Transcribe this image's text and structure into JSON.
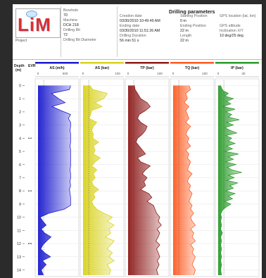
{
  "header": {
    "logo_text": "LiM",
    "project_label": "Project",
    "borehole_label": "Borehole",
    "borehole_value": "70",
    "machine_label": "Machine",
    "machine_value": "DCH 218",
    "drilling_bit_label": "Drilling Bit",
    "drilling_bit_value": "72",
    "drilling_bit_diameter_label": "Drilling Bit Diameter",
    "title": "Drilling parameters",
    "creation_date_label": "Creation date",
    "creation_date_value": "03/30/2010 10:49:49 AM",
    "ending_date_label": "Ending date",
    "ending_date_value": "03/30/2010 11:51:26 AM",
    "drilling_duration_label": "Drilling Duration",
    "drilling_duration_value": "56 min 51 s",
    "starting_position_label": "Starting Position",
    "starting_position_value": "0 m",
    "ending_position_label": "Ending Position",
    "ending_position_value": "22 m",
    "length_label": "Length",
    "length_value": "22 m",
    "gps_location_label": "GPS location (lat, lon)",
    "gps_altitude_label": "GPS altitude",
    "inclination_label": "Inclination X/Y",
    "inclination_value": "10 deg/25 deg"
  },
  "chart_data": {
    "type": "line",
    "depth_label": "Depth\n(m)",
    "depth_title": "Depth",
    "depth_unit": "(m)",
    "evr_label": "EVR",
    "depth_ticks": [
      0,
      1,
      2,
      3,
      4,
      5,
      6,
      7,
      8,
      9,
      10,
      11,
      12,
      13,
      14
    ],
    "depth_range": [
      -0.4,
      14.4
    ],
    "evr_markers": [
      4,
      8,
      12
    ],
    "tracks": [
      {
        "name": "AS (m/h)",
        "color": "#1a1ad0",
        "ticks": [
          "0",
          "500"
        ],
        "range": [
          0,
          700
        ],
        "depth": [
          0,
          0.3,
          0.6,
          1,
          1.3,
          1.6,
          1.9,
          2.2,
          2.5,
          2.8,
          3.1,
          3.4,
          3.7,
          4,
          4.3,
          4.6,
          4.9,
          5.2,
          5.5,
          5.8,
          6.1,
          6.4,
          6.7,
          7,
          7.3,
          7.6,
          7.9,
          8.2,
          8.5,
          8.8,
          9.1,
          9.4,
          9.7,
          10,
          10.3,
          10.6,
          10.9,
          11.2,
          11.5,
          11.8,
          12.1,
          12.4,
          12.7,
          13,
          13.3,
          13.6,
          14,
          14.4
        ],
        "values": [
          600,
          580,
          250,
          380,
          500,
          260,
          420,
          600,
          560,
          600,
          600,
          590,
          600,
          600,
          600,
          590,
          600,
          600,
          600,
          600,
          600,
          590,
          600,
          600,
          590,
          600,
          580,
          590,
          600,
          600,
          600,
          480,
          200,
          40,
          90,
          150,
          60,
          120,
          240,
          160,
          90,
          50,
          120,
          230,
          80,
          150,
          60,
          100
        ]
      },
      {
        "name": "AS (bar)",
        "color": "#d9d21e",
        "ticks": [
          "0",
          "100"
        ],
        "range": [
          0,
          110
        ],
        "depth": [
          0,
          0.3,
          0.6,
          1,
          1.3,
          1.6,
          1.9,
          2.2,
          2.5,
          2.8,
          3.1,
          3.4,
          3.7,
          4,
          4.3,
          4.6,
          4.9,
          5.2,
          5.5,
          5.8,
          6.1,
          6.4,
          6.7,
          7,
          7.3,
          7.6,
          7.9,
          8.2,
          8.5,
          8.8,
          9.1,
          9.4,
          9.7,
          10,
          10.3,
          10.6,
          10.9,
          11.2,
          11.5,
          11.8,
          12.1,
          12.4,
          12.7,
          13,
          13.3,
          13.6,
          14,
          14.4
        ],
        "values": [
          20,
          28,
          70,
          60,
          35,
          55,
          25,
          22,
          18,
          40,
          30,
          25,
          30,
          28,
          45,
          30,
          35,
          30,
          50,
          35,
          25,
          40,
          30,
          35,
          25,
          30,
          45,
          30,
          35,
          25,
          30,
          40,
          60,
          85,
          70,
          90,
          75,
          80,
          65,
          90,
          80,
          70,
          85,
          75,
          90,
          70,
          80,
          75
        ]
      },
      {
        "name": "TP (bar)",
        "color": "#8e1a1a",
        "ticks": [
          "0",
          "100"
        ],
        "range": [
          0,
          120
        ],
        "depth": [
          0,
          0.3,
          0.6,
          1,
          1.3,
          1.6,
          1.9,
          2.2,
          2.5,
          2.8,
          3.1,
          3.4,
          3.7,
          4,
          4.3,
          4.6,
          4.9,
          5.2,
          5.5,
          5.8,
          6.1,
          6.4,
          6.7,
          7,
          7.3,
          7.6,
          7.9,
          8.2,
          8.5,
          8.8,
          9.1,
          9.4,
          9.7,
          10,
          10.3,
          10.6,
          10.9,
          11.2,
          11.5,
          11.8,
          12.1,
          12.4,
          12.7,
          13,
          13.3,
          13.6,
          14,
          14.4
        ],
        "values": [
          20,
          22,
          30,
          40,
          60,
          70,
          55,
          35,
          30,
          40,
          60,
          55,
          45,
          30,
          25,
          35,
          45,
          55,
          30,
          40,
          70,
          55,
          45,
          60,
          50,
          55,
          40,
          65,
          75,
          60,
          80,
          85,
          90,
          100,
          95,
          105,
          92,
          100,
          95,
          88,
          100,
          90,
          95,
          100,
          92,
          98,
          90,
          95
        ]
      },
      {
        "name": "TQ (bar)",
        "color": "#ff5a1f",
        "ticks": [
          "0",
          "100"
        ],
        "range": [
          0,
          120
        ],
        "depth": [
          0,
          0.3,
          0.6,
          1,
          1.3,
          1.6,
          1.9,
          2.2,
          2.5,
          2.8,
          3.1,
          3.4,
          3.7,
          4,
          4.3,
          4.6,
          4.9,
          5.2,
          5.5,
          5.8,
          6.1,
          6.4,
          6.7,
          7,
          7.3,
          7.6,
          7.9,
          8.2,
          8.5,
          8.8,
          9.1,
          9.4,
          9.7,
          10,
          10.3,
          10.6,
          10.9,
          11.2,
          11.5,
          11.8,
          12.1,
          12.4,
          12.7,
          13,
          13.3,
          13.6,
          14,
          14.4
        ],
        "values": [
          50,
          55,
          40,
          45,
          35,
          50,
          40,
          45,
          50,
          40,
          55,
          45,
          40,
          50,
          45,
          55,
          40,
          50,
          45,
          55,
          50,
          45,
          60,
          50,
          45,
          55,
          50,
          60,
          55,
          50,
          60,
          55,
          65,
          55,
          60,
          70,
          55,
          65,
          60,
          70,
          55,
          65,
          60,
          70,
          65,
          60,
          70,
          65
        ]
      },
      {
        "name": "IP (bar)",
        "color": "#2a9a2a",
        "ticks": [
          "0",
          "30"
        ],
        "range": [
          0,
          45
        ],
        "depth": [
          0,
          0.2,
          0.4,
          0.6,
          0.8,
          1,
          1.2,
          1.4,
          1.6,
          1.8,
          2,
          2.2,
          2.4,
          2.6,
          2.8,
          3,
          3.2,
          3.4,
          3.6,
          3.8,
          4,
          4.2,
          4.4,
          4.6,
          4.8,
          5,
          5.2,
          5.4,
          5.6,
          5.8,
          6,
          6.2,
          6.4,
          6.6,
          6.8,
          7,
          7.2,
          7.4,
          7.6,
          7.8,
          8,
          8.2,
          8.4,
          8.6,
          8.8,
          9,
          9.2,
          9.4,
          9.6,
          9.8,
          10,
          10.3,
          10.6,
          10.9,
          11.2,
          11.5,
          11.8,
          12.1,
          12.4,
          12.7,
          13,
          13.3,
          13.6,
          14,
          14.4
        ],
        "values": [
          3,
          4,
          6,
          12,
          8,
          18,
          10,
          15,
          6,
          20,
          9,
          16,
          12,
          25,
          10,
          18,
          8,
          14,
          22,
          9,
          16,
          12,
          20,
          10,
          17,
          8,
          24,
          12,
          18,
          9,
          21,
          11,
          16,
          28,
          12,
          19,
          10,
          23,
          14,
          18,
          9,
          20,
          12,
          17,
          8,
          15,
          10,
          6,
          4,
          3,
          4,
          3,
          4,
          3,
          5,
          3,
          4,
          3,
          4,
          3,
          4,
          3,
          4,
          3,
          4
        ]
      }
    ]
  }
}
